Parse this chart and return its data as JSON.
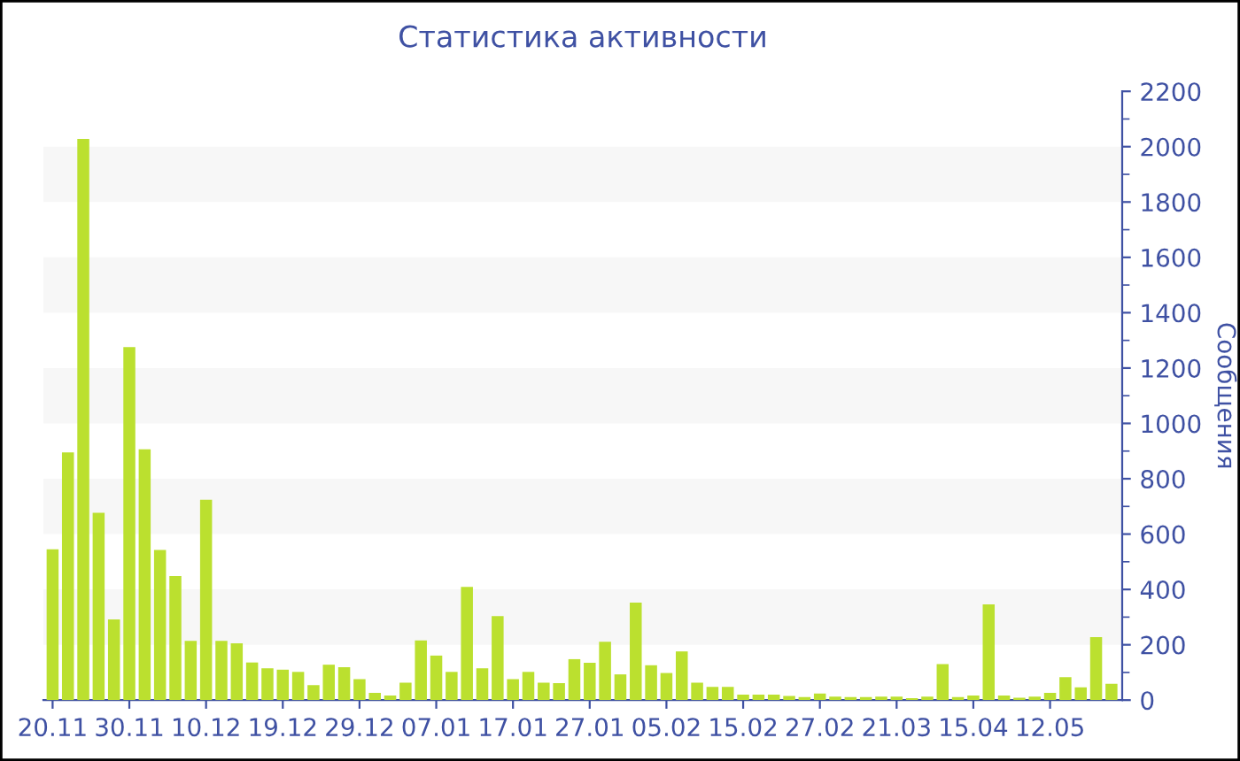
{
  "chart_data": {
    "type": "bar",
    "title": "Статистика активности",
    "ylabel": "Сообщения",
    "categories": [
      "20.11",
      null,
      null,
      null,
      null,
      "30.11",
      null,
      null,
      null,
      null,
      "10.12",
      null,
      null,
      null,
      null,
      "19.12",
      null,
      null,
      null,
      null,
      "29.12",
      null,
      null,
      null,
      null,
      "07.01",
      null,
      null,
      null,
      null,
      "17.01",
      null,
      null,
      null,
      null,
      "27.01",
      null,
      null,
      null,
      null,
      "05.02",
      null,
      null,
      null,
      null,
      "15.02",
      null,
      null,
      null,
      null,
      "27.02",
      null,
      null,
      null,
      null,
      "21.03",
      null,
      null,
      null,
      null,
      "15.04",
      null,
      null,
      null,
      null,
      "12.05",
      null,
      null,
      null,
      null
    ],
    "values": [
      545,
      895,
      2028,
      677,
      292,
      1276,
      906,
      543,
      448,
      214,
      724,
      214,
      205,
      136,
      115,
      110,
      102,
      54,
      128,
      119,
      76,
      26,
      17,
      63,
      216,
      161,
      102,
      409,
      115,
      304,
      76,
      102,
      63,
      61,
      148,
      135,
      211,
      93,
      352,
      126,
      98,
      176,
      63,
      48,
      48,
      20,
      20,
      20,
      15,
      11,
      24,
      13,
      11,
      11,
      13,
      13,
      7,
      13,
      130,
      11,
      17,
      346,
      17,
      9,
      13,
      26,
      83,
      46,
      228,
      59
    ],
    "color": "#bbe02f",
    "ylim": [
      0,
      2200
    ],
    "yticks": [
      0,
      200,
      400,
      600,
      800,
      1000,
      1200,
      1400,
      1600,
      1800,
      2000,
      2200
    ],
    "legend": false,
    "bands": [
      {
        "axis": "y",
        "from": 200,
        "to": 400,
        "color": "#f7f7f7"
      },
      {
        "axis": "y",
        "from": 600,
        "to": 800,
        "color": "#f7f7f7"
      },
      {
        "axis": "y",
        "from": 1000,
        "to": 1200,
        "color": "#f7f7f7"
      },
      {
        "axis": "y",
        "from": 1400,
        "to": 1600,
        "color": "#f7f7f7"
      },
      {
        "axis": "y",
        "from": 1800,
        "to": 2000,
        "color": "#f7f7f7"
      }
    ]
  }
}
